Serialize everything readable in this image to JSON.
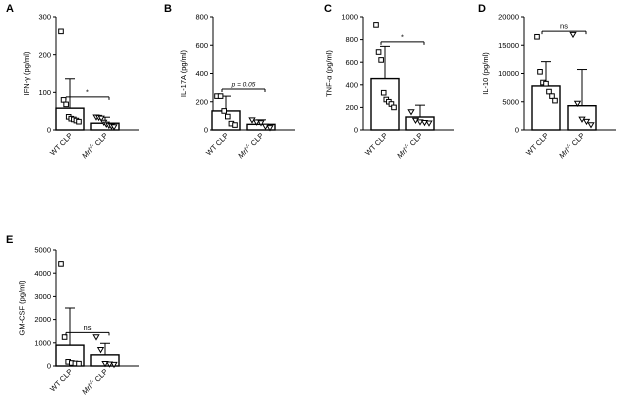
{
  "chart_data": [
    {
      "panel": "A",
      "type": "bar",
      "ylabel": "IFN-γ (pg/ml)",
      "ylim": [
        0,
        300
      ],
      "yticks": [
        0,
        100,
        200,
        300
      ],
      "categories": [
        {
          "main": "WT CLP",
          "sup": ""
        },
        {
          "main": "Mrl",
          "sup": "-/-",
          "suffix": " CLP",
          "italic": true
        }
      ],
      "bars": [
        {
          "mean": 58,
          "sd": 78
        },
        {
          "mean": 18,
          "sd": 16
        }
      ],
      "points": [
        [
          262,
          80,
          68,
          35,
          30,
          28,
          25,
          22
        ],
        [
          34,
          33,
          31,
          20,
          15,
          12,
          10,
          8
        ]
      ],
      "markers": [
        "square",
        "triangle-down"
      ],
      "sig": {
        "label": "*",
        "y": 88
      }
    },
    {
      "panel": "B",
      "type": "bar",
      "ylabel": "IL-17A (pg/ml)",
      "ylim": [
        0,
        800
      ],
      "yticks": [
        0,
        200,
        400,
        600,
        800
      ],
      "categories": [
        {
          "main": "WT CLP",
          "sup": ""
        },
        {
          "main": "Mrl",
          "sup": "-/-",
          "suffix": " CLP",
          "italic": true
        }
      ],
      "bars": [
        {
          "mean": 135,
          "sd": 105
        },
        {
          "mean": 40,
          "sd": 32
        }
      ],
      "points": [
        [
          240,
          240,
          135,
          95,
          45,
          35
        ],
        [
          70,
          55,
          50,
          25,
          15
        ]
      ],
      "markers": [
        "square",
        "triangle-down"
      ],
      "sig": {
        "label": "p = 0.05",
        "y": 290
      }
    },
    {
      "panel": "C",
      "type": "bar",
      "ylabel": "TNF-α (pg/ml)",
      "ylim": [
        0,
        1000
      ],
      "yticks": [
        0,
        200,
        400,
        600,
        800,
        1000
      ],
      "categories": [
        {
          "main": "WT CLP",
          "sup": ""
        },
        {
          "main": "Mrl",
          "sup": "-/-",
          "suffix": " CLP",
          "italic": true
        }
      ],
      "bars": [
        {
          "mean": 455,
          "sd": 285
        },
        {
          "mean": 115,
          "sd": 105
        }
      ],
      "points": [
        [
          930,
          690,
          620,
          330,
          270,
          250,
          230,
          200
        ],
        [
          160,
          85,
          70,
          65,
          60
        ]
      ],
      "markers": [
        "square",
        "triangle-down"
      ],
      "sig": {
        "label": "*",
        "y": 780
      }
    },
    {
      "panel": "D",
      "type": "bar",
      "ylabel": "IL-10 (pg/ml)",
      "ylim": [
        0,
        20000
      ],
      "yticks": [
        0,
        5000,
        10000,
        15000,
        20000
      ],
      "categories": [
        {
          "main": "WT CLP",
          "sup": ""
        },
        {
          "main": "Mrl",
          "sup": "-/-",
          "suffix": " CLP",
          "italic": true
        }
      ],
      "bars": [
        {
          "mean": 7800,
          "sd": 4300
        },
        {
          "mean": 4300,
          "sd": 6400
        }
      ],
      "points": [
        [
          16500,
          10300,
          8400,
          8200,
          6800,
          6000,
          5200
        ],
        [
          16900,
          4700,
          1900,
          1500,
          900
        ]
      ],
      "markers": [
        "square",
        "triangle-down"
      ],
      "sig": {
        "label": "ns",
        "y": 17500
      }
    },
    {
      "panel": "E",
      "type": "bar",
      "ylabel": "GM-CSF (pg/ml)",
      "ylim": [
        0,
        5000
      ],
      "yticks": [
        0,
        1000,
        2000,
        3000,
        4000,
        5000
      ],
      "categories": [
        {
          "main": "WT CLP",
          "sup": ""
        },
        {
          "main": "Mrl",
          "sup": "-/-",
          "suffix": " CLP",
          "italic": true
        }
      ],
      "bars": [
        {
          "mean": 900,
          "sd": 1600
        },
        {
          "mean": 480,
          "sd": 500
        }
      ],
      "points": [
        [
          4400,
          1250,
          180,
          130,
          110,
          100
        ],
        [
          1250,
          700,
          100,
          80,
          60
        ]
      ],
      "markers": [
        "square",
        "triangle-down"
      ],
      "sig": {
        "label": "ns",
        "y": 1450
      }
    }
  ]
}
